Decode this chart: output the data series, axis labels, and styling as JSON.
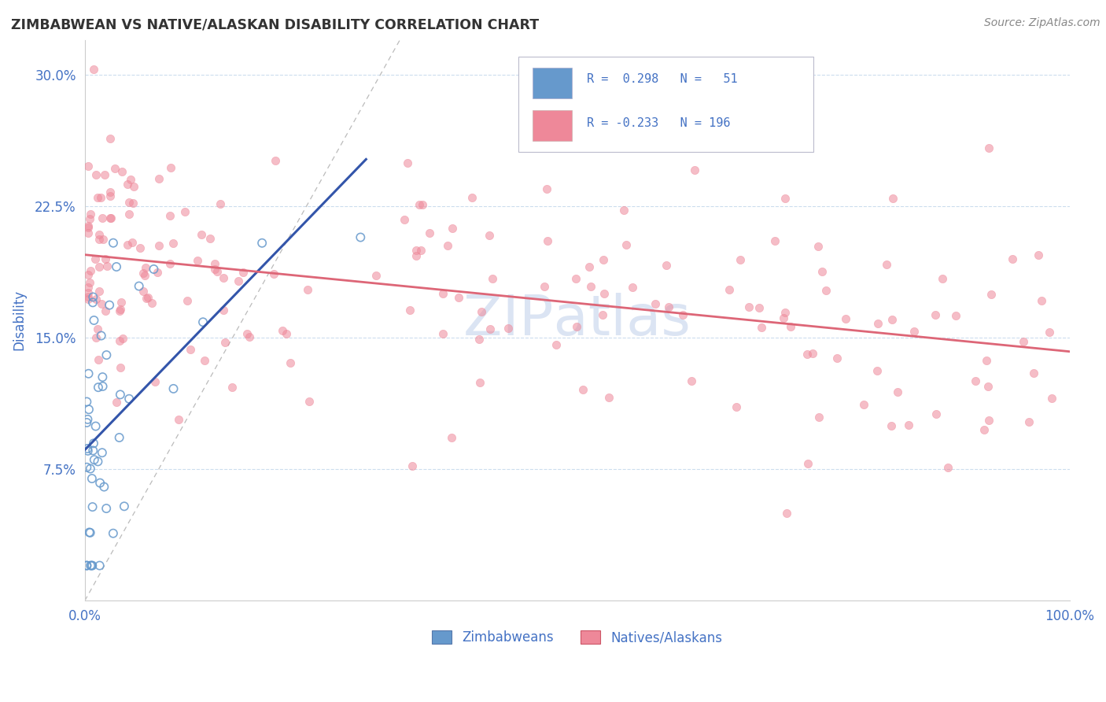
{
  "title": "ZIMBABWEAN VS NATIVE/ALASKAN DISABILITY CORRELATION CHART",
  "source": "Source: ZipAtlas.com",
  "ylabel": "Disability",
  "xlim": [
    0.0,
    1.0
  ],
  "ylim": [
    0.0,
    0.32
  ],
  "ytick_labels": [
    "7.5%",
    "15.0%",
    "22.5%",
    "30.0%"
  ],
  "ytick_vals": [
    0.075,
    0.15,
    0.225,
    0.3
  ],
  "xtick_labels": [
    "0.0%",
    "100.0%"
  ],
  "xtick_vals": [
    0.0,
    1.0
  ],
  "blue_marker": "#6699cc",
  "pink_marker": "#ee8899",
  "blue_line": "#3355aa",
  "pink_line": "#dd6677",
  "title_color": "#333333",
  "axis_label_color": "#4472c4",
  "source_color": "#888888",
  "grid_color": "#ccddee",
  "background_color": "#ffffff",
  "watermark_color": "#ccd9ee",
  "legend_box_color": "#ddddee",
  "diag_color": "#bbbbbb"
}
